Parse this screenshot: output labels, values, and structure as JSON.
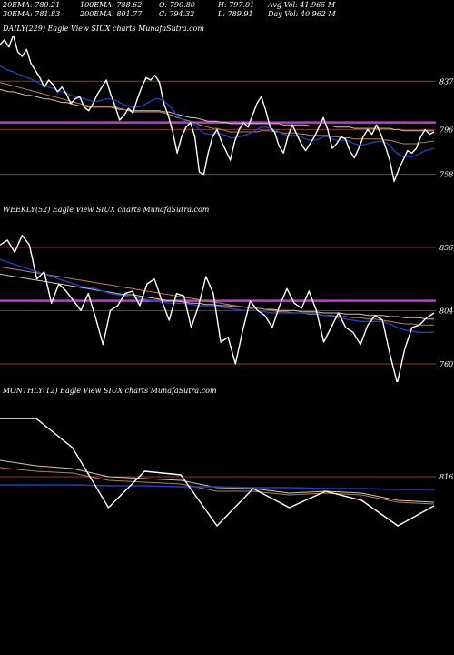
{
  "header": {
    "row1": [
      {
        "label": "20EMA: 780.21"
      },
      {
        "label": "100EMA: 788.62"
      },
      {
        "label": "O: 790.80"
      },
      {
        "label": "H: 797.01"
      },
      {
        "label": "Avg Vol: 41.965 M"
      }
    ],
    "row2": [
      {
        "label": "30EMA: 781.83"
      },
      {
        "label": "200EMA: 801.77"
      },
      {
        "label": "C: 794.32"
      },
      {
        "label": "L: 789.91"
      },
      {
        "label": "Day Vol: 40.962 M"
      }
    ]
  },
  "colors": {
    "background": "#000000",
    "price": "#ffffff",
    "ema_short": "#1e3fbf",
    "ema_long_1": "#b5825a",
    "ema_long_2": "#d8c4a8",
    "magenta_level": "#c13ad6",
    "level_line": "#8b3a2a"
  },
  "chart_data": [
    {
      "type": "line",
      "title": "DAILY(229) Eagle  View  SIUX  charts MunafaSutra.com",
      "y_tick_labels": [
        {
          "value": 837,
          "label": "837"
        },
        {
          "value": 796,
          "label": "796"
        },
        {
          "value": 758,
          "label": "758"
        }
      ],
      "ylim": [
        740,
        875
      ],
      "horizontal_levels": [
        837,
        796,
        758
      ],
      "magenta_level": 802,
      "series": [
        {
          "role": "price",
          "values": [
            868,
            872,
            866,
            876,
            862,
            858,
            864,
            852,
            846,
            840,
            832,
            838,
            834,
            828,
            832,
            826,
            818,
            822,
            824,
            815,
            812,
            818,
            826,
            832,
            838,
            826,
            816,
            804,
            808,
            814,
            810,
            822,
            832,
            840,
            838,
            842,
            836,
            818,
            808,
            794,
            776,
            790,
            798,
            802,
            790,
            760,
            758,
            776,
            790,
            796,
            786,
            778,
            770,
            786,
            796,
            802,
            798,
            808,
            818,
            824,
            812,
            798,
            794,
            782,
            776,
            790,
            800,
            792,
            784,
            778,
            784,
            790,
            798,
            806,
            796,
            780,
            784,
            790,
            788,
            778,
            772,
            780,
            790,
            796,
            792,
            800,
            792,
            782,
            770,
            752,
            762,
            770,
            778,
            776,
            780,
            790,
            796,
            792,
            794
          ]
        },
        {
          "role": "ema_short",
          "values": [
            850,
            848,
            846,
            845,
            843,
            842,
            840,
            839,
            837,
            835,
            833,
            832,
            831,
            829,
            828,
            827,
            825,
            824,
            823,
            822,
            821,
            820,
            820,
            821,
            822,
            822,
            821,
            819,
            817,
            816,
            815,
            815,
            816,
            818,
            820,
            822,
            822,
            820,
            817,
            813,
            808,
            805,
            803,
            802,
            800,
            796,
            793,
            792,
            792,
            793,
            792,
            791,
            789,
            789,
            790,
            791,
            792,
            794,
            796,
            798,
            798,
            797,
            796,
            794,
            792,
            791,
            791,
            791,
            790,
            788,
            787,
            787,
            788,
            790,
            790,
            788,
            787,
            787,
            787,
            786,
            784,
            783,
            783,
            784,
            785,
            786,
            786,
            785,
            783,
            778,
            775,
            773,
            773,
            773,
            774,
            776,
            778,
            779,
            780
          ]
        },
        {
          "role": "ema_long_1",
          "values": [
            836,
            835,
            834,
            833,
            832,
            831,
            830,
            829,
            828,
            827,
            826,
            825,
            824,
            823,
            822,
            821,
            820,
            819,
            818,
            817,
            816,
            816,
            816,
            816,
            816,
            816,
            815,
            814,
            813,
            812,
            811,
            811,
            811,
            811,
            811,
            811,
            811,
            810,
            809,
            808,
            806,
            805,
            804,
            803,
            802,
            800,
            799,
            798,
            797,
            797,
            796,
            795,
            794,
            794,
            794,
            794,
            794,
            794,
            794,
            795,
            795,
            795,
            794,
            794,
            793,
            793,
            793,
            793,
            792,
            792,
            791,
            791,
            791,
            791,
            791,
            790,
            790,
            789,
            789,
            789,
            788,
            788,
            788,
            788,
            788,
            788,
            788,
            787,
            787,
            786,
            785,
            784,
            784,
            784,
            784,
            785,
            785,
            786,
            786
          ]
        },
        {
          "role": "ema_long_2",
          "values": [
            830,
            829,
            828,
            828,
            827,
            826,
            825,
            825,
            824,
            823,
            822,
            822,
            821,
            820,
            819,
            819,
            818,
            817,
            816,
            816,
            815,
            815,
            815,
            815,
            815,
            815,
            814,
            813,
            813,
            812,
            812,
            812,
            812,
            812,
            812,
            812,
            812,
            811,
            811,
            810,
            809,
            808,
            807,
            806,
            806,
            805,
            804,
            803,
            803,
            803,
            802,
            802,
            801,
            801,
            801,
            801,
            801,
            801,
            801,
            801,
            801,
            801,
            801,
            801,
            800,
            800,
            800,
            800,
            800,
            800,
            799,
            799,
            799,
            799,
            799,
            799,
            798,
            798,
            798,
            798,
            797,
            797,
            797,
            797,
            797,
            797,
            797,
            797,
            797,
            796,
            796,
            795,
            795,
            795,
            795,
            795,
            795,
            795,
            795
          ]
        }
      ]
    },
    {
      "type": "line",
      "title": "WEEKLY(52) Eagle  View  SIUX  charts MunafaSutra.com",
      "y_tick_labels": [
        {
          "value": 856,
          "label": "856"
        },
        {
          "value": 804,
          "label": "804"
        },
        {
          "value": 760,
          "label": "760"
        }
      ],
      "ylim": [
        745,
        880
      ],
      "horizontal_levels": [
        856,
        804,
        760
      ],
      "magenta_level": 812,
      "series": [
        {
          "role": "price",
          "values": [
            858,
            862,
            852,
            866,
            858,
            830,
            836,
            810,
            826,
            820,
            812,
            804,
            818,
            798,
            776,
            804,
            808,
            818,
            820,
            808,
            826,
            830,
            812,
            796,
            818,
            816,
            790,
            808,
            832,
            818,
            778,
            782,
            760,
            788,
            812,
            804,
            800,
            790,
            808,
            822,
            810,
            806,
            820,
            804,
            778,
            790,
            802,
            790,
            786,
            776,
            792,
            800,
            796,
            768,
            744,
            772,
            790,
            792,
            798,
            802
          ]
        },
        {
          "role": "ema_short",
          "values": [
            846,
            844,
            842,
            840,
            838,
            836,
            834,
            832,
            830,
            828,
            826,
            824,
            823,
            822,
            820,
            818,
            817,
            816,
            815,
            814,
            813,
            812,
            811,
            810,
            810,
            810,
            809,
            808,
            808,
            808,
            807,
            806,
            805,
            804,
            804,
            804,
            803,
            802,
            802,
            802,
            802,
            802,
            802,
            802,
            800,
            799,
            798,
            797,
            796,
            795,
            795,
            795,
            795,
            793,
            790,
            788,
            787,
            786,
            786,
            786
          ]
        },
        {
          "role": "ema_long_1",
          "values": [
            840,
            839,
            838,
            837,
            836,
            835,
            834,
            833,
            832,
            831,
            830,
            829,
            828,
            827,
            826,
            825,
            824,
            823,
            822,
            821,
            820,
            819,
            818,
            817,
            816,
            815,
            814,
            813,
            812,
            811,
            810,
            809,
            808,
            807,
            806,
            806,
            805,
            804,
            803,
            803,
            802,
            802,
            801,
            801,
            800,
            800,
            799,
            799,
            798,
            798,
            797,
            797,
            796,
            795,
            794,
            793,
            793,
            792,
            792,
            792
          ]
        },
        {
          "role": "ema_long_2",
          "values": [
            834,
            833,
            832,
            831,
            830,
            829,
            828,
            827,
            826,
            825,
            824,
            823,
            822,
            821,
            820,
            819,
            818,
            817,
            817,
            816,
            815,
            814,
            813,
            812,
            812,
            811,
            810,
            810,
            809,
            809,
            808,
            808,
            807,
            807,
            806,
            806,
            805,
            805,
            804,
            804,
            804,
            803,
            803,
            803,
            802,
            802,
            802,
            801,
            801,
            801,
            800,
            800,
            800,
            799,
            799,
            798,
            798,
            798,
            797,
            797
          ]
        }
      ]
    },
    {
      "type": "line",
      "title": "MONTHLY(12) Eagle  View  SIUX  charts MunafaSutra.com",
      "y_tick_labels": [
        {
          "value": 816,
          "label": "816"
        }
      ],
      "ylim": [
        700,
        900
      ],
      "horizontal_levels": [
        816
      ],
      "magenta_level": null,
      "series": [
        {
          "role": "price",
          "values": [
            880,
            880,
            848,
            782,
            822,
            818,
            762,
            803,
            782,
            800,
            790,
            762,
            784
          ]
        },
        {
          "role": "ema_short",
          "values": [
            807,
            807,
            807,
            806,
            806,
            805,
            805,
            804,
            804,
            803,
            803,
            802,
            802
          ]
        },
        {
          "role": "ema_long_1",
          "values": [
            826,
            822,
            820,
            812,
            810,
            808,
            800,
            800,
            796,
            798,
            796,
            788,
            786
          ]
        },
        {
          "role": "ema_long_2",
          "values": [
            834,
            828,
            825,
            816,
            814,
            812,
            804,
            803,
            798,
            800,
            798,
            790,
            788
          ]
        }
      ]
    }
  ]
}
